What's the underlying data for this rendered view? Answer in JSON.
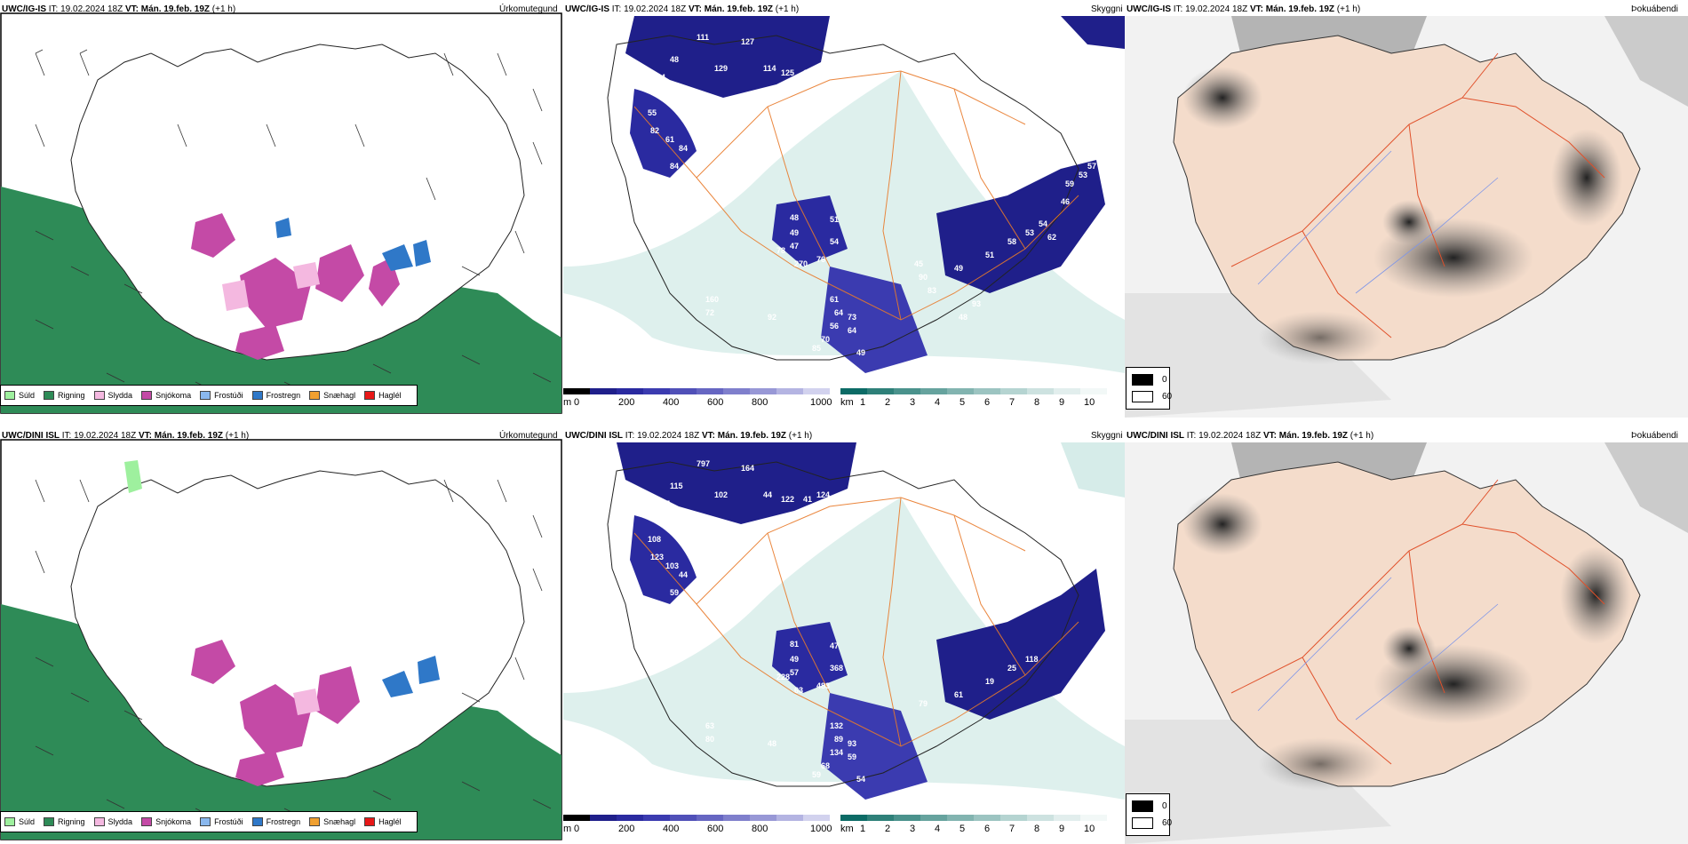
{
  "rows": [
    {
      "model": "UWC/IG-IS",
      "it_label": "IT:",
      "it_value": "19.02.2024 18Z",
      "vt_label": "VT:",
      "vt_value": "Mán. 19.feb. 19Z",
      "lead": "(+1 h)",
      "numbers": [
        "111",
        "127",
        "48",
        "44",
        "129",
        "114",
        "125",
        "113",
        "117",
        "55",
        "55",
        "82",
        "61",
        "84",
        "84",
        "16",
        "48",
        "49",
        "51",
        "47",
        "54",
        "78",
        "270",
        "76",
        "160",
        "72",
        "92",
        "61",
        "64",
        "73",
        "56",
        "64",
        "70",
        "85",
        "49",
        "90",
        "49",
        "51",
        "58",
        "53",
        "54",
        "62",
        "46",
        "59",
        "53",
        "57",
        "87",
        "93",
        "48",
        "83",
        "45"
      ]
    },
    {
      "model": "UWC/DINI ISL",
      "it_label": "IT:",
      "it_value": "19.02.2024 18Z",
      "vt_label": "VT:",
      "vt_value": "Mán. 19.feb. 19Z",
      "lead": "(+1 h)",
      "numbers": [
        "797",
        "164",
        "115",
        "137",
        "102",
        "44",
        "122",
        "41",
        "124",
        "108",
        "109",
        "123",
        "103",
        "44",
        "59",
        "80",
        "81",
        "49",
        "47",
        "57",
        "368",
        "228",
        "63",
        "483",
        "63",
        "80",
        "48",
        "132",
        "89",
        "93",
        "134",
        "59",
        "68",
        "59",
        "54",
        "79",
        "61",
        "19",
        "25",
        "118"
      ]
    }
  ],
  "panel_titles": {
    "precip": "Úrkomutegund",
    "cloud_base": "Skyggni",
    "fog": "Þokuábendi"
  },
  "precip_legend": [
    {
      "label": "Súld",
      "color": "#9ef09e"
    },
    {
      "label": "Rigning",
      "color": "#2e8b57"
    },
    {
      "label": "Slydda",
      "color": "#f4b8e0"
    },
    {
      "label": "Snjókoma",
      "color": "#c44aa6"
    },
    {
      "label": "Frostúði",
      "color": "#8ab8ee"
    },
    {
      "label": "Frostregn",
      "color": "#2f78c8"
    },
    {
      "label": "Snæhagl",
      "color": "#f0a030"
    },
    {
      "label": "Haglél",
      "color": "#e81818"
    }
  ],
  "height_bar": {
    "unit": "m",
    "ticks": [
      "0",
      "200",
      "400",
      "600",
      "800",
      "1000"
    ],
    "colors": [
      "#000000",
      "#1f1f8a",
      "#2a2aa0",
      "#3b3bb0",
      "#5050b8",
      "#6666c2",
      "#7f7fcc",
      "#9898d6",
      "#b4b4e2",
      "#d2d2ee"
    ]
  },
  "vis_bar": {
    "unit": "km",
    "ticks": [
      "1",
      "2",
      "3",
      "4",
      "5",
      "6",
      "7",
      "8",
      "9",
      "10"
    ],
    "colors": [
      "#0c6b66",
      "#2e8079",
      "#4a928c",
      "#66a39e",
      "#82b4b0",
      "#9cc4c1",
      "#b5d4d1",
      "#cde2e0",
      "#e2eeed",
      "#f2f8f7"
    ]
  },
  "fog_legend": {
    "items": [
      {
        "label": "0",
        "color": "#000000"
      },
      {
        "label": "60",
        "color": "#ffffff"
      }
    ]
  }
}
